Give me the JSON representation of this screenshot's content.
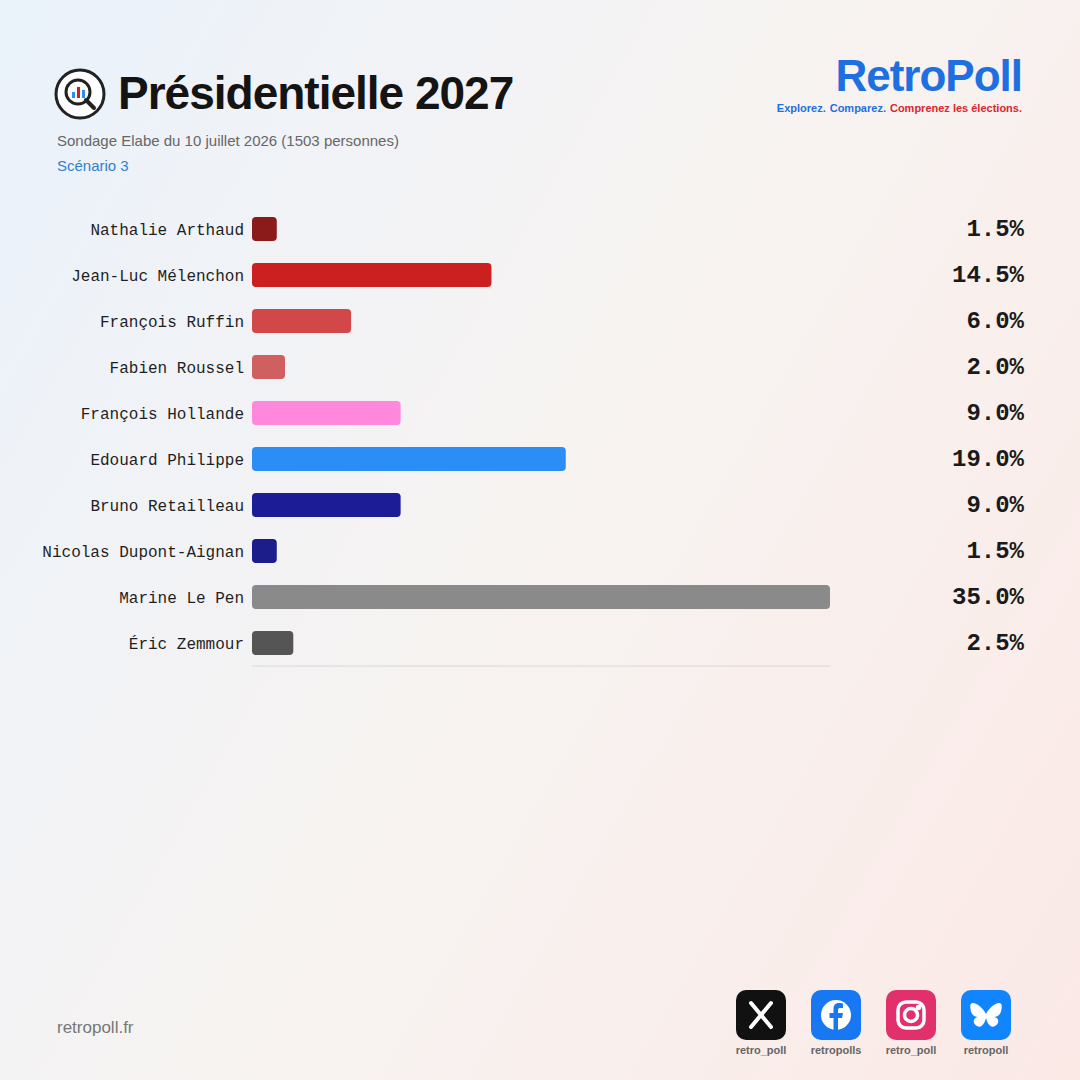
{
  "chart_data": {
    "type": "bar",
    "orientation": "horizontal",
    "title": "Présidentielle 2027",
    "subtitle": "Sondage Elabe du 10 juillet 2026 (1503 personnes)",
    "annotations": [
      "Scénario 3"
    ],
    "categories": [
      "Nathalie Arthaud",
      "Jean-Luc Mélenchon",
      "François Ruffin",
      "Fabien Roussel",
      "François Hollande",
      "Edouard Philippe",
      "Bruno Retailleau",
      "Nicolas Dupont-Aignan",
      "Marine Le Pen",
      "Éric Zemmour"
    ],
    "values": [
      1.5,
      14.5,
      6.0,
      2.0,
      9.0,
      19.0,
      9.0,
      1.5,
      35.0,
      2.5
    ],
    "value_labels": [
      "1.5%",
      "14.5%",
      "6.0%",
      "2.0%",
      "9.0%",
      "19.0%",
      "9.0%",
      "1.5%",
      "35.0%",
      "2.5%"
    ],
    "colors": [
      "#8b1a1a",
      "#cc1f1f",
      "#d24848",
      "#d06060",
      "#ff88dd",
      "#2b8ef7",
      "#1c1c96",
      "#1c1c8a",
      "#8a8a8a",
      "#555555"
    ],
    "xlim": [
      0,
      35
    ],
    "grid": false,
    "data_labels": true,
    "tick_labels": "y"
  },
  "branding": {
    "name": "RetroPoll",
    "tagline": [
      "Explorez.",
      "Comparez.",
      "Comprenez les élections."
    ]
  },
  "footer": {
    "url": "retropoll.fr",
    "handles": [
      "retro_poll",
      "retropolls",
      "retro_poll",
      "retropoll"
    ]
  }
}
